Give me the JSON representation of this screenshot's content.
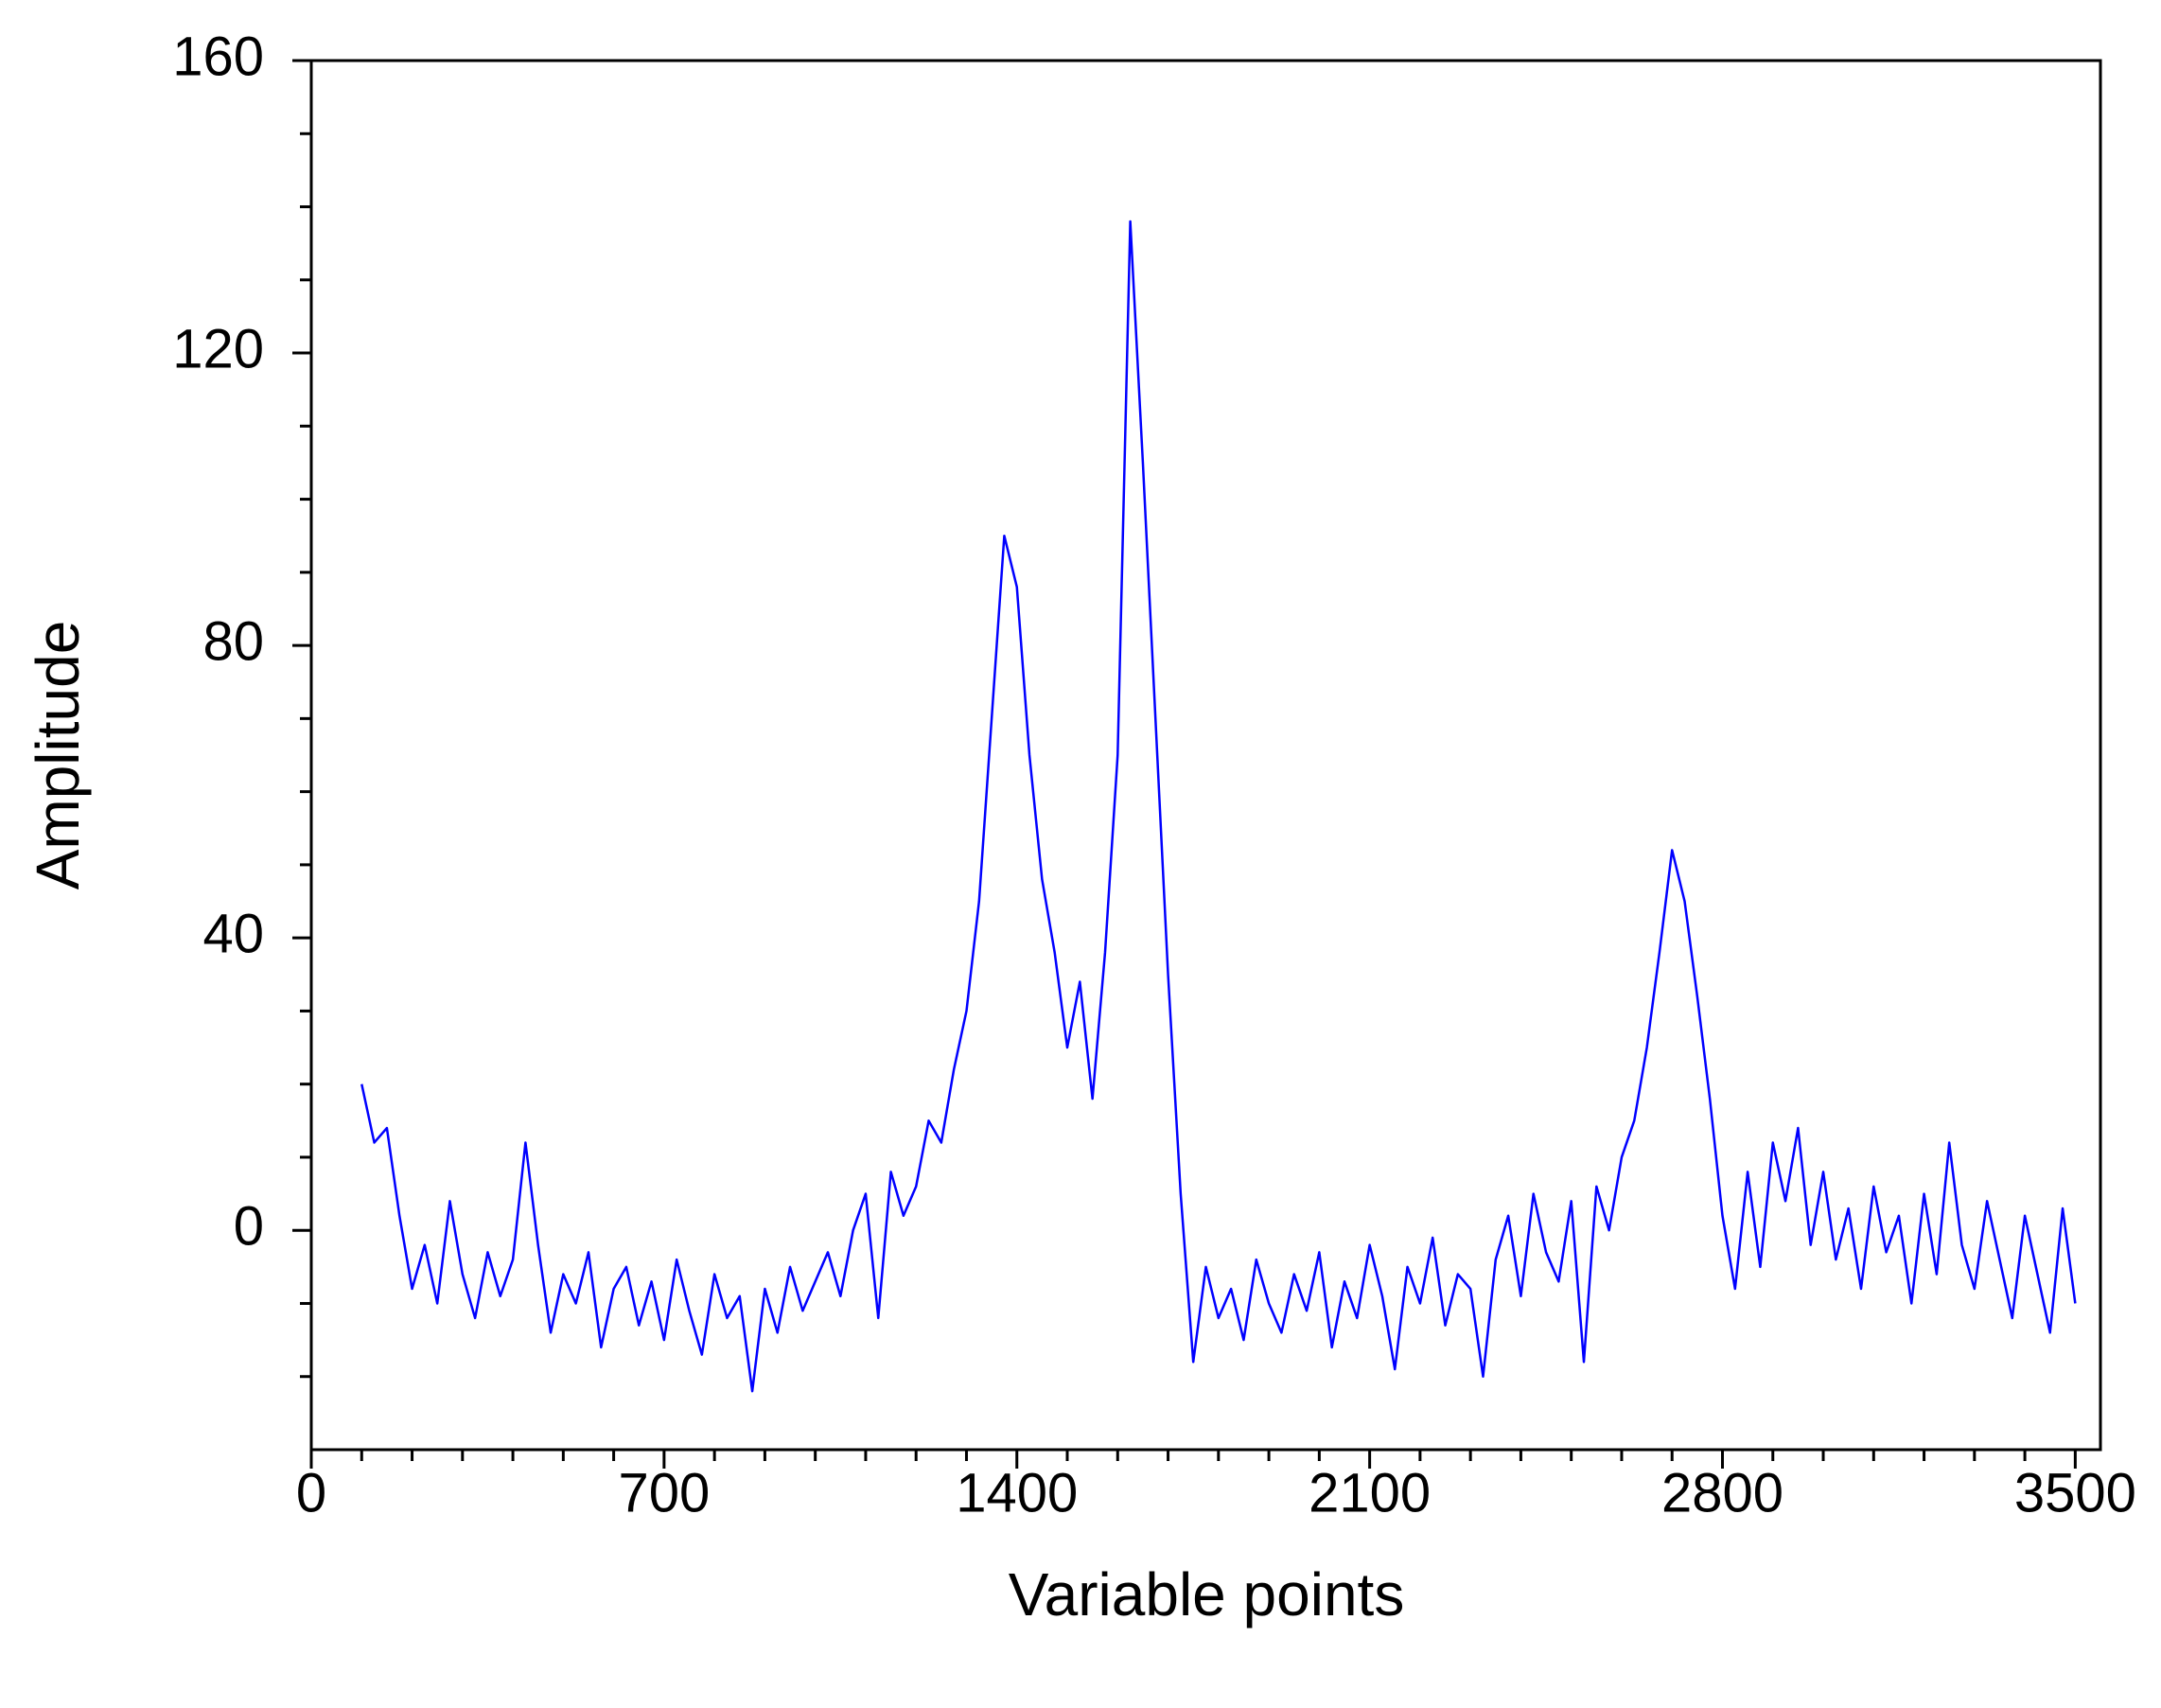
{
  "chart_data": {
    "type": "line",
    "xlabel": "Variable points",
    "ylabel": "Amplitude",
    "xlim": [
      0,
      3550
    ],
    "ylim": [
      -30,
      160
    ],
    "xticks": [
      0,
      700,
      1400,
      2100,
      2800,
      3500
    ],
    "yticks": [
      0,
      40,
      80,
      120,
      160
    ],
    "xminorticks": [
      100,
      200,
      300,
      400,
      500,
      600,
      800,
      900,
      1000,
      1100,
      1200,
      1300,
      1500,
      1600,
      1700,
      1800,
      1900,
      2000,
      2200,
      2300,
      2400,
      2500,
      2600,
      2700,
      2900,
      3000,
      3100,
      3200,
      3300,
      3400
    ],
    "yminorticks": [
      -20,
      -10,
      10,
      20,
      30,
      50,
      60,
      70,
      90,
      100,
      110,
      130,
      140,
      150
    ],
    "grid": false,
    "series": [
      {
        "color": "#0000ff",
        "x": [
          100,
          125,
          150,
          175,
          200,
          225,
          250,
          275,
          300,
          325,
          350,
          375,
          400,
          425,
          450,
          475,
          500,
          525,
          550,
          575,
          600,
          625,
          650,
          675,
          700,
          725,
          750,
          775,
          800,
          825,
          850,
          875,
          900,
          925,
          950,
          975,
          1000,
          1025,
          1050,
          1075,
          1100,
          1125,
          1150,
          1175,
          1200,
          1225,
          1250,
          1275,
          1300,
          1325,
          1350,
          1375,
          1400,
          1425,
          1450,
          1475,
          1500,
          1525,
          1550,
          1575,
          1600,
          1625,
          1650,
          1675,
          1700,
          1725,
          1750,
          1775,
          1800,
          1825,
          1850,
          1875,
          1900,
          1925,
          1950,
          1975,
          2000,
          2025,
          2050,
          2075,
          2100,
          2125,
          2150,
          2175,
          2200,
          2225,
          2250,
          2275,
          2300,
          2325,
          2350,
          2375,
          2400,
          2425,
          2450,
          2475,
          2500,
          2525,
          2550,
          2575,
          2600,
          2625,
          2650,
          2675,
          2700,
          2725,
          2750,
          2775,
          2800,
          2825,
          2850,
          2875,
          2900,
          2925,
          2950,
          2975,
          3000,
          3025,
          3050,
          3075,
          3100,
          3125,
          3150,
          3175,
          3200,
          3225,
          3250,
          3275,
          3300,
          3325,
          3350,
          3375,
          3400,
          3425,
          3450,
          3475,
          3500
        ],
        "values": [
          20,
          12,
          14,
          2,
          -8,
          -2,
          -10,
          4,
          -6,
          -12,
          -3,
          -9,
          -4,
          12,
          -2,
          -14,
          -6,
          -10,
          -3,
          -16,
          -8,
          -5,
          -13,
          -7,
          -15,
          -4,
          -11,
          -17,
          -6,
          -12,
          -9,
          -22,
          -8,
          -14,
          -5,
          -11,
          -7,
          -3,
          -9,
          0,
          5,
          -12,
          8,
          2,
          6,
          15,
          12,
          22,
          30,
          45,
          70,
          95,
          88,
          65,
          48,
          38,
          25,
          34,
          18,
          38,
          65,
          138,
          105,
          70,
          35,
          5,
          -18,
          -5,
          -12,
          -8,
          -15,
          -4,
          -10,
          -14,
          -6,
          -11,
          -3,
          -16,
          -7,
          -12,
          -2,
          -9,
          -19,
          -5,
          -10,
          -1,
          -13,
          -6,
          -8,
          -20,
          -4,
          2,
          -9,
          5,
          -3,
          -7,
          4,
          -18,
          6,
          0,
          10,
          15,
          25,
          38,
          52,
          45,
          32,
          18,
          2,
          -8,
          8,
          -5,
          12,
          4,
          14,
          -2,
          8,
          -4,
          3,
          -8,
          6,
          -3,
          2,
          -10,
          5,
          -6,
          12,
          -2,
          -8,
          4,
          -4,
          -12,
          2,
          -6,
          -14,
          3,
          -10
        ]
      }
    ]
  }
}
